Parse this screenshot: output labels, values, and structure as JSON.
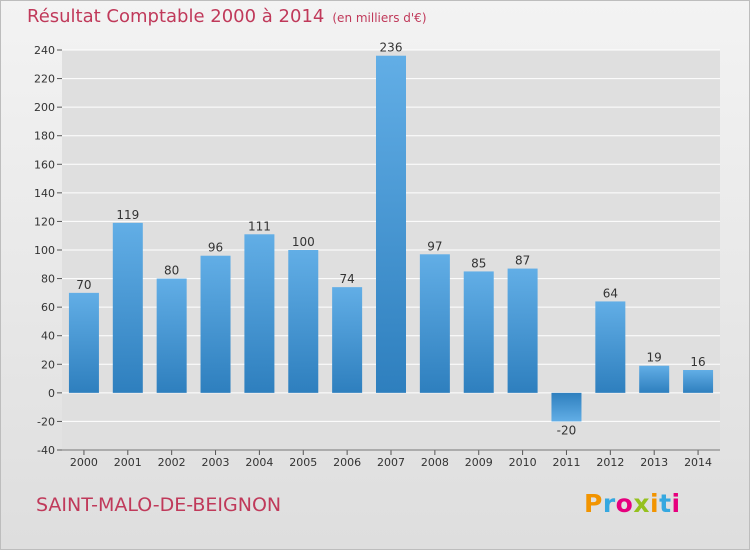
{
  "header": {
    "title": "Résultat Comptable 2000 à 2014",
    "subtitle": "(en milliers d'€)"
  },
  "footer": {
    "commune": "SAINT-MALO-DE-BEIGNON",
    "logo": {
      "letters": [
        "P",
        "r",
        "o",
        "x",
        "i",
        "t",
        "i"
      ],
      "colors": [
        "#f29400",
        "#35a8e0",
        "#e6007e",
        "#95c11f",
        "#f29400",
        "#35a8e0",
        "#e6007e"
      ]
    }
  },
  "colors": {
    "title": "#c0395a",
    "bar_light": "#62aee6",
    "bar_dark": "#2e7fbe",
    "grid": "#ffffff",
    "plot_bg": "#dfdfdf"
  },
  "chart_data": {
    "type": "bar",
    "title": "Résultat Comptable 2000 à 2014",
    "subtitle": "(en milliers d'€)",
    "xlabel": "",
    "ylabel": "",
    "categories": [
      "2000",
      "2001",
      "2002",
      "2003",
      "2004",
      "2005",
      "2006",
      "2007",
      "2008",
      "2009",
      "2010",
      "2011",
      "2012",
      "2013",
      "2014"
    ],
    "values": [
      70,
      119,
      80,
      96,
      111,
      100,
      74,
      236,
      97,
      85,
      87,
      -20,
      64,
      19,
      16
    ],
    "ylim": [
      -40,
      240
    ],
    "yticks": [
      -40,
      -20,
      0,
      20,
      40,
      60,
      80,
      100,
      120,
      140,
      160,
      180,
      200,
      220,
      240
    ],
    "grid": true,
    "data_labels": true
  }
}
